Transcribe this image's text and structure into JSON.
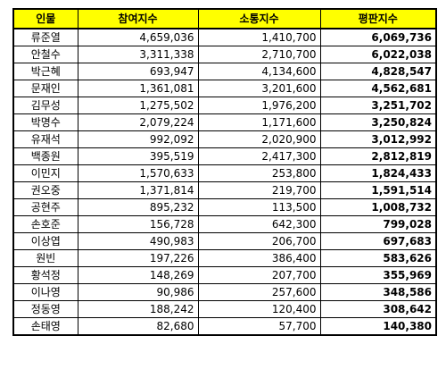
{
  "table": {
    "headers": [
      "인물",
      "참여지수",
      "소통지수",
      "평판지수"
    ],
    "rows": [
      {
        "name": "류준열",
        "participation": "4,659,036",
        "communication": "1,410,700",
        "reputation": "6,069,736"
      },
      {
        "name": "안철수",
        "participation": "3,311,338",
        "communication": "2,710,700",
        "reputation": "6,022,038"
      },
      {
        "name": "박근혜",
        "participation": "693,947",
        "communication": "4,134,600",
        "reputation": "4,828,547"
      },
      {
        "name": "문재인",
        "participation": "1,361,081",
        "communication": "3,201,600",
        "reputation": "4,562,681"
      },
      {
        "name": "김무성",
        "participation": "1,275,502",
        "communication": "1,976,200",
        "reputation": "3,251,702"
      },
      {
        "name": "박명수",
        "participation": "2,079,224",
        "communication": "1,171,600",
        "reputation": "3,250,824"
      },
      {
        "name": "유재석",
        "participation": "992,092",
        "communication": "2,020,900",
        "reputation": "3,012,992"
      },
      {
        "name": "백종원",
        "participation": "395,519",
        "communication": "2,417,300",
        "reputation": "2,812,819"
      },
      {
        "name": "이민지",
        "participation": "1,570,633",
        "communication": "253,800",
        "reputation": "1,824,433"
      },
      {
        "name": "권오중",
        "participation": "1,371,814",
        "communication": "219,700",
        "reputation": "1,591,514"
      },
      {
        "name": "공현주",
        "participation": "895,232",
        "communication": "113,500",
        "reputation": "1,008,732"
      },
      {
        "name": "손호준",
        "participation": "156,728",
        "communication": "642,300",
        "reputation": "799,028"
      },
      {
        "name": "이상엽",
        "participation": "490,983",
        "communication": "206,700",
        "reputation": "697,683"
      },
      {
        "name": "원빈",
        "participation": "197,226",
        "communication": "386,400",
        "reputation": "583,626"
      },
      {
        "name": "황석정",
        "participation": "148,269",
        "communication": "207,700",
        "reputation": "355,969"
      },
      {
        "name": "이나영",
        "participation": "90,986",
        "communication": "257,600",
        "reputation": "348,586"
      },
      {
        "name": "정동영",
        "participation": "188,242",
        "communication": "120,400",
        "reputation": "308,642"
      },
      {
        "name": "손태영",
        "participation": "82,680",
        "communication": "57,700",
        "reputation": "140,380"
      }
    ]
  },
  "colors": {
    "header_background": "#ffff00",
    "border": "#000000"
  }
}
